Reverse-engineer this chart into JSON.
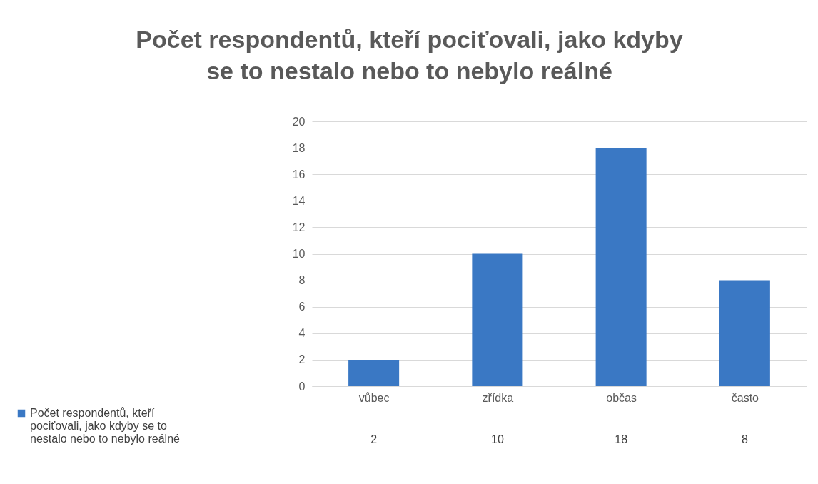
{
  "chart_data": {
    "type": "bar",
    "title": "Počet respondentů, kteří pociťovali, jako kdyby se to nestalo nebo to nebylo reálné",
    "categories": [
      "vůbec",
      "zřídka",
      "občas",
      "často"
    ],
    "series": [
      {
        "name": "Počet respondentů, kteří pociťovali, jako kdyby se to nestalo nebo to nebylo reálné",
        "color": "#3a78c4",
        "values": [
          2,
          10,
          18,
          8
        ]
      }
    ],
    "ylim": [
      0,
      20
    ],
    "yticks": [
      0,
      2,
      4,
      6,
      8,
      10,
      12,
      14,
      16,
      18,
      20
    ],
    "grid": "y",
    "legend": "bottom left",
    "data_labels": true
  }
}
